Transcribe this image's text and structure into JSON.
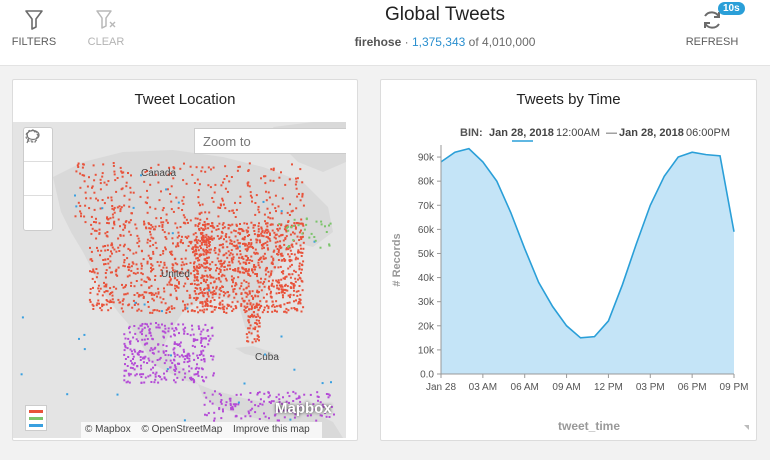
{
  "header": {
    "title": "Global Tweets",
    "source": "firehose",
    "separator": "·",
    "filtered_count": "1,375,343",
    "of_text": "of",
    "total_count": "4,010,000",
    "filters_label": "FILTERS",
    "clear_label": "CLEAR",
    "refresh_label": "REFRESH",
    "refresh_badge": "10s"
  },
  "map_panel": {
    "title": "Tweet Location",
    "zoom_placeholder": "Zoom to",
    "labels": {
      "canada": "Canada",
      "united": "United",
      "cuba": "Cuba"
    },
    "mapbox_logo": "Mapbox",
    "attribution": [
      "© Mapbox",
      "© OpenStreetMap",
      "Improve this map"
    ],
    "colors": {
      "tweets_us": "#e8523a",
      "tweets_latam": "#b44bd6",
      "tweets_other": "#39a0e0",
      "land": "#d9d9d9",
      "water": "#e4e4e4"
    }
  },
  "time_panel": {
    "title": "Tweets by Time",
    "bin_label": "BIN:",
    "range_start_date": "Jan 28, 2018",
    "range_start_time": "12:00AM",
    "range_dash": "—",
    "range_end_date": "Jan 28, 2018",
    "range_end_time": "06:00PM"
  },
  "chart_data": {
    "type": "area",
    "xlabel": "tweet_time",
    "ylabel": "# Records",
    "ylim": [
      0,
      95000
    ],
    "xlim_hours": [
      0,
      21
    ],
    "x_ticks": [
      {
        "h": 0,
        "label": "Jan 28"
      },
      {
        "h": 3,
        "label": "03 AM"
      },
      {
        "h": 6,
        "label": "06 AM"
      },
      {
        "h": 9,
        "label": "09 AM"
      },
      {
        "h": 12,
        "label": "12 PM"
      },
      {
        "h": 15,
        "label": "03 PM"
      },
      {
        "h": 18,
        "label": "06 PM"
      },
      {
        "h": 21,
        "label": "09 PM"
      }
    ],
    "y_ticks": [
      {
        "v": 0,
        "label": "0.0"
      },
      {
        "v": 10000,
        "label": "10k"
      },
      {
        "v": 20000,
        "label": "20k"
      },
      {
        "v": 30000,
        "label": "30k"
      },
      {
        "v": 40000,
        "label": "40k"
      },
      {
        "v": 50000,
        "label": "50k"
      },
      {
        "v": 60000,
        "label": "60k"
      },
      {
        "v": 70000,
        "label": "70k"
      },
      {
        "v": 80000,
        "label": "80k"
      },
      {
        "v": 90000,
        "label": "90k"
      }
    ],
    "x": [
      0,
      1,
      2,
      3,
      4,
      5,
      6,
      7,
      8,
      9,
      10,
      11,
      12,
      13,
      14,
      15,
      16,
      17,
      18,
      19,
      20,
      21
    ],
    "values": [
      88000,
      92000,
      93500,
      88000,
      80000,
      67000,
      52000,
      38000,
      28000,
      20000,
      15000,
      15500,
      22000,
      37000,
      54000,
      70000,
      82000,
      90000,
      92000,
      91000,
      90500,
      59000
    ],
    "grid": false,
    "line_color": "#2a9fd8",
    "fill_color": "#c4e4f7"
  }
}
